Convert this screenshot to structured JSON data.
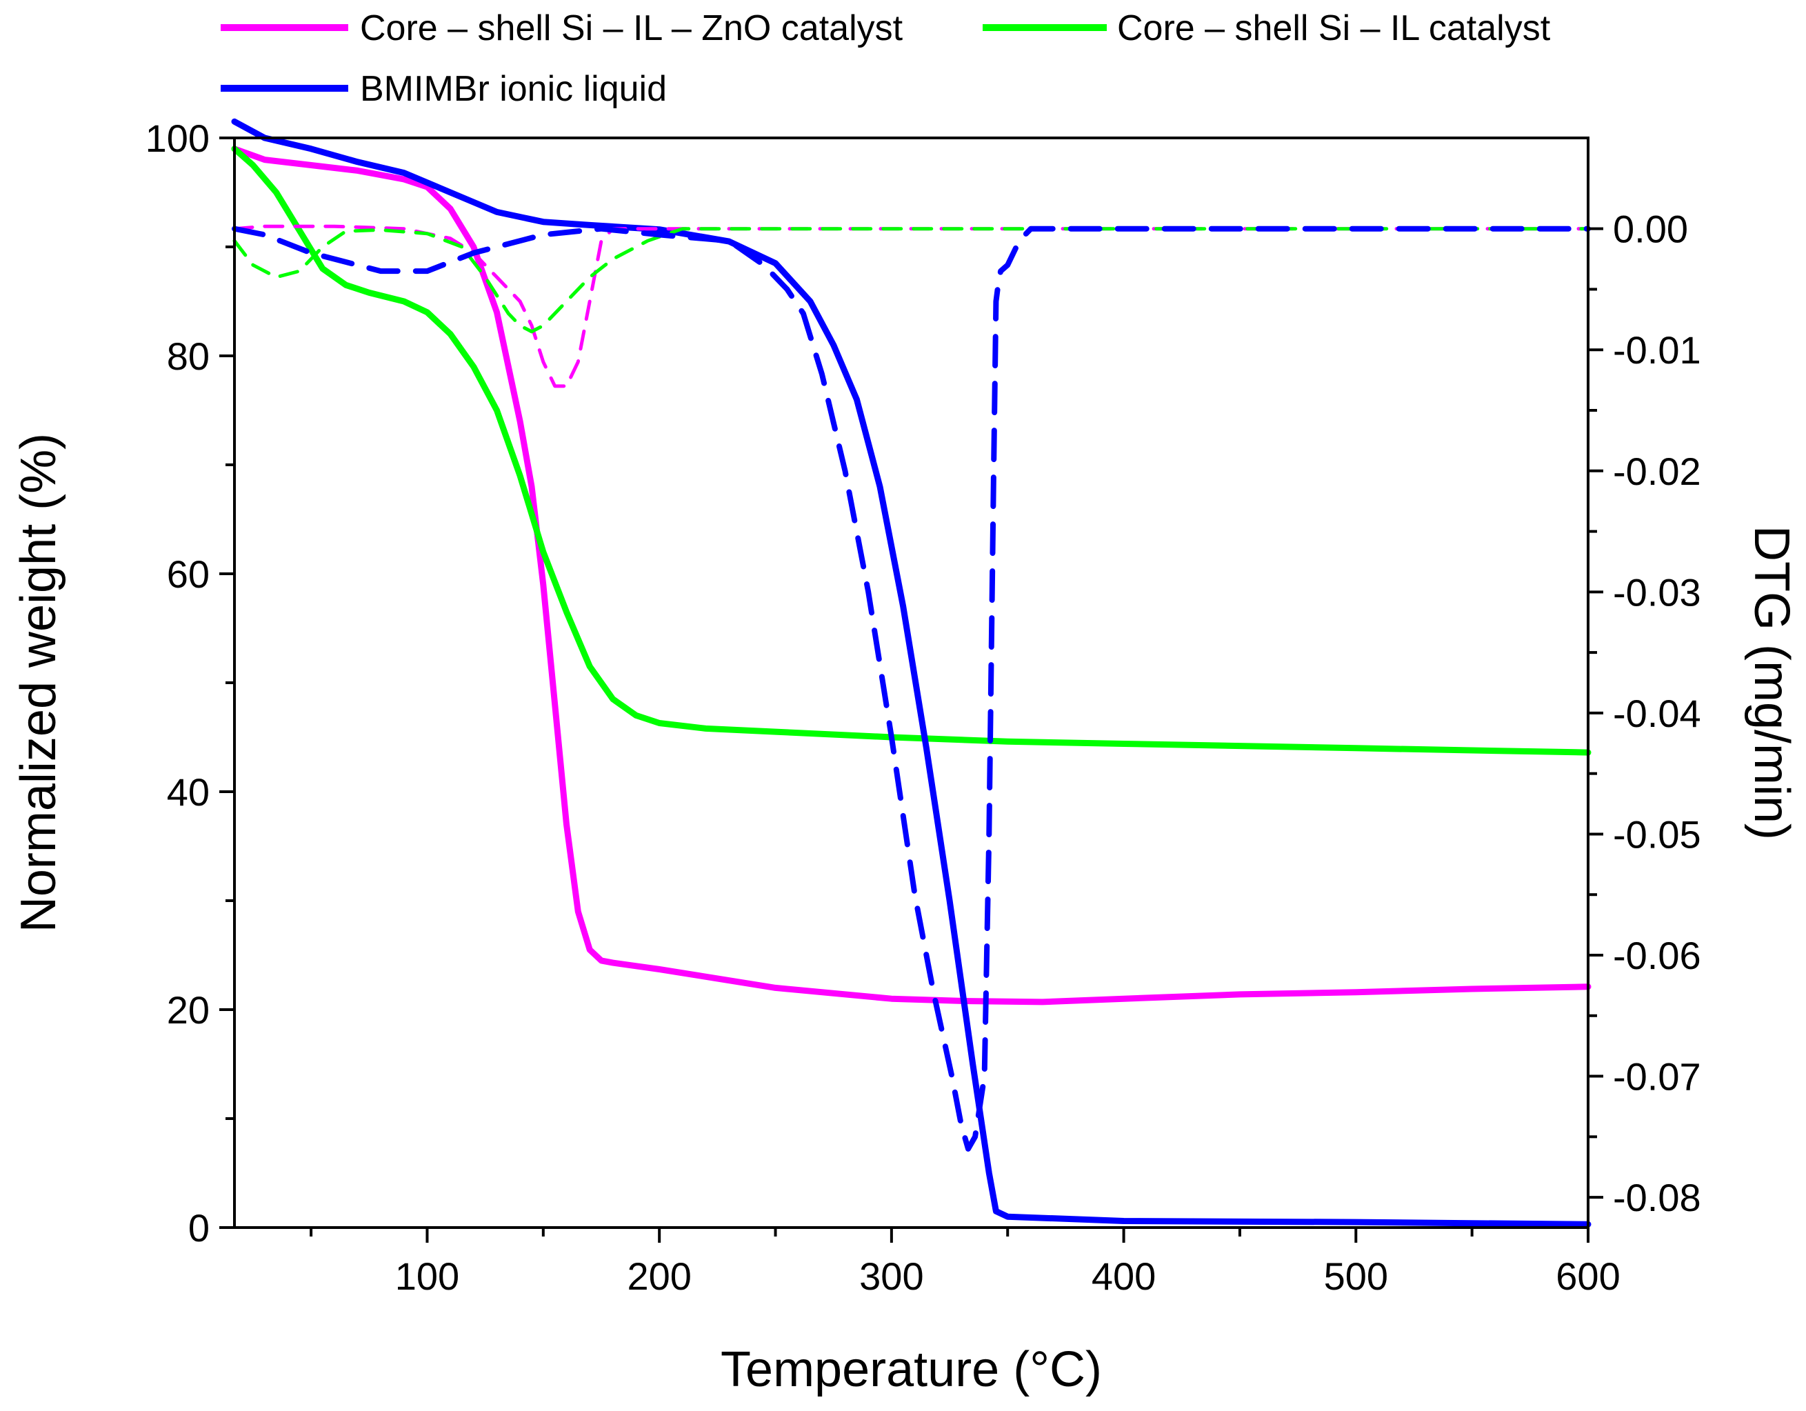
{
  "chart_data": {
    "type": "line",
    "xlabel": "Temperature (°C)",
    "ylabel": "Normalized weight (%)",
    "y2label": "DTG (mg/min)",
    "xlim": [
      17,
      600
    ],
    "ylim": [
      0,
      100
    ],
    "y2lim": [
      -0.0825,
      0.0075
    ],
    "x_ticks": [
      100,
      200,
      300,
      400,
      500,
      600
    ],
    "y_ticks": [
      0,
      20,
      40,
      60,
      80,
      100
    ],
    "y2_ticks": [
      0.0,
      -0.01,
      -0.02,
      -0.03,
      -0.04,
      -0.05,
      -0.06,
      -0.07,
      -0.08
    ],
    "y2_tick_labels": [
      "0.00",
      "-0.01",
      "-0.02",
      "-0.03",
      "-0.04",
      "-0.05",
      "-0.06",
      "-0.07",
      "-0.08"
    ],
    "legend": [
      {
        "label": "Core – shell Si – IL – ZnO catalyst",
        "color": "#ff00ff"
      },
      {
        "label": "Core – shell Si – IL catalyst",
        "color": "#00ff00"
      },
      {
        "label": "BMIMBr ionic liquid",
        "color": "#0000ff"
      }
    ],
    "series": [
      {
        "name": "Core – shell Si – IL – ZnO catalyst",
        "kind": "TG",
        "axis": "left",
        "color": "#ff00ff",
        "x": [
          17,
          30,
          50,
          70,
          90,
          100,
          110,
          120,
          130,
          140,
          145,
          150,
          155,
          160,
          165,
          170,
          175,
          180,
          200,
          250,
          300,
          330,
          365,
          400,
          450,
          500,
          550,
          600
        ],
        "y": [
          99,
          98,
          97.5,
          97,
          96.2,
          95.5,
          93.5,
          90,
          84,
          74,
          68,
          59,
          48,
          37,
          29,
          25.5,
          24.5,
          24.3,
          23.7,
          22,
          21,
          20.8,
          20.7,
          21,
          21.4,
          21.6,
          21.9,
          22.1
        ]
      },
      {
        "name": "Core – shell Si – IL catalyst",
        "kind": "TG",
        "axis": "left",
        "color": "#00ff00",
        "x": [
          17,
          25,
          35,
          45,
          55,
          65,
          75,
          90,
          100,
          110,
          120,
          130,
          140,
          150,
          160,
          170,
          180,
          190,
          200,
          220,
          250,
          300,
          350,
          400,
          450,
          500,
          550,
          600
        ],
        "y": [
          99,
          97.5,
          95,
          91.5,
          88,
          86.5,
          85.8,
          85,
          84,
          82,
          79,
          75,
          69,
          62,
          56.5,
          51.5,
          48.5,
          47,
          46.3,
          45.8,
          45.5,
          45,
          44.6,
          44.4,
          44.2,
          44,
          43.8,
          43.6
        ]
      },
      {
        "name": "BMIMBr ionic liquid",
        "kind": "TG",
        "axis": "left",
        "color": "#0000ff",
        "x": [
          17,
          30,
          50,
          70,
          90,
          110,
          130,
          150,
          170,
          200,
          230,
          250,
          265,
          275,
          285,
          295,
          305,
          315,
          325,
          335,
          342,
          345,
          350,
          400,
          500,
          600
        ],
        "y": [
          101.5,
          100,
          99,
          97.8,
          96.8,
          95,
          93.2,
          92.3,
          92,
          91.6,
          90.5,
          88.5,
          85,
          81,
          76,
          68,
          57,
          44,
          30,
          15,
          5,
          1.5,
          1,
          0.6,
          0.5,
          0.3
        ]
      },
      {
        "name": "Core – shell Si – IL – ZnO catalyst",
        "kind": "DTG",
        "axis": "right",
        "color": "#ff00ff",
        "x": [
          17,
          30,
          60,
          90,
          110,
          120,
          130,
          140,
          145,
          150,
          155,
          160,
          165,
          170,
          175,
          180,
          200,
          250,
          300,
          400,
          500,
          600
        ],
        "y": [
          0.0,
          0.0002,
          0.0002,
          0.0,
          -0.0008,
          -0.002,
          -0.004,
          -0.006,
          -0.008,
          -0.011,
          -0.013,
          -0.013,
          -0.011,
          -0.006,
          -0.001,
          0.0,
          0.0,
          0.0,
          0.0,
          0.0,
          0.0,
          0.0
        ]
      },
      {
        "name": "Core – shell Si – IL catalyst",
        "kind": "DTG",
        "axis": "right",
        "color": "#00ff00",
        "x": [
          17,
          25,
          35,
          45,
          55,
          65,
          80,
          100,
          115,
          125,
          135,
          140,
          145,
          150,
          160,
          170,
          180,
          195,
          210,
          250,
          300,
          400,
          500,
          600
        ],
        "y": [
          -0.001,
          -0.003,
          -0.004,
          -0.0035,
          -0.0015,
          -0.0002,
          -0.0001,
          -0.0004,
          -0.0015,
          -0.004,
          -0.007,
          -0.008,
          -0.0085,
          -0.008,
          -0.006,
          -0.004,
          -0.0025,
          -0.001,
          0.0,
          0.0,
          0.0,
          0.0,
          0.0,
          0.0
        ]
      },
      {
        "name": "BMIMBr ionic liquid",
        "kind": "DTG",
        "axis": "right",
        "color": "#0000ff",
        "x": [
          17,
          30,
          50,
          80,
          100,
          120,
          150,
          175,
          200,
          230,
          245,
          255,
          262,
          270,
          280,
          290,
          300,
          310,
          318,
          326,
          330,
          333,
          336,
          340,
          342,
          344,
          345,
          346,
          347,
          350,
          355,
          360,
          400,
          500,
          600
        ],
        "y": [
          0.0,
          -0.0005,
          -0.002,
          -0.0035,
          -0.0035,
          -0.002,
          -0.0005,
          0.0,
          -0.0005,
          -0.001,
          -0.003,
          -0.005,
          -0.007,
          -0.012,
          -0.02,
          -0.03,
          -0.042,
          -0.055,
          -0.063,
          -0.07,
          -0.074,
          -0.076,
          -0.075,
          -0.07,
          -0.05,
          -0.02,
          -0.006,
          -0.0045,
          -0.0035,
          -0.003,
          -0.001,
          0.0,
          0.0,
          0.0,
          0.0
        ]
      }
    ]
  }
}
